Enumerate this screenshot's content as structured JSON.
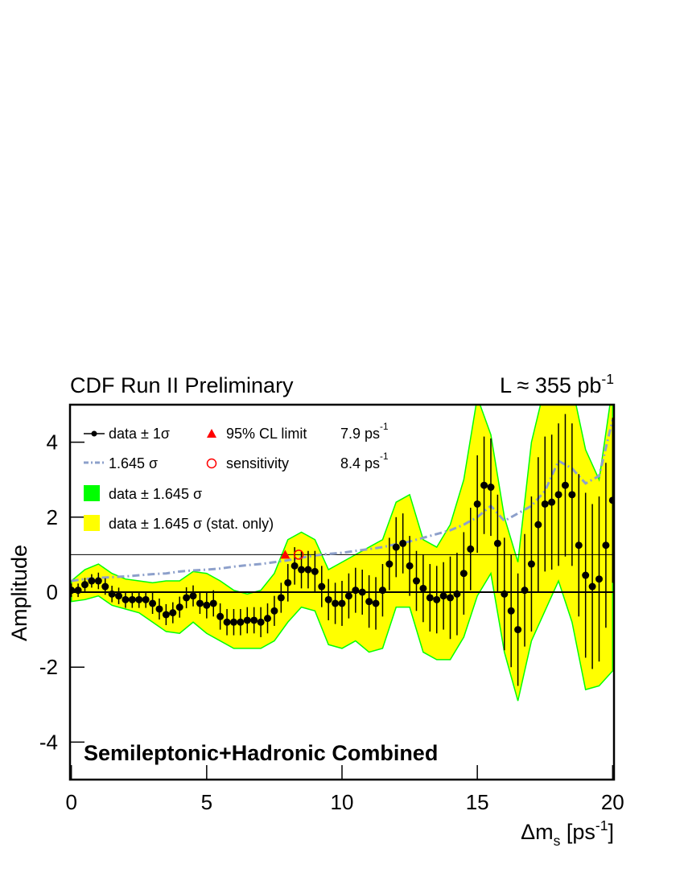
{
  "chart_data": {
    "type": "scatter",
    "title": "CDF Run II Preliminary",
    "luminosity": {
      "text": "L ≈ 355 pb",
      "exponent": "-1"
    },
    "x_label": [
      {
        "text": "Δm"
      },
      {
        "text": "s",
        "sub": true
      },
      {
        "text": " [ps"
      },
      {
        "text": "-1",
        "sup": true
      },
      {
        "text": "]"
      }
    ],
    "y_label": "Amplitude",
    "annotation": "Semileptonic+Hadronic Combined",
    "xlim": [
      -0.05,
      20.05
    ],
    "ylim": [
      -5,
      5
    ],
    "xticks": [
      0,
      5,
      10,
      15,
      20
    ],
    "yticks": [
      -4,
      -2,
      0,
      2,
      4
    ],
    "hlines": [
      0,
      1
    ],
    "series": [
      {
        "name": "data ± 1σ",
        "color": "#000000",
        "x": [
          0,
          0.25,
          0.5,
          0.75,
          1,
          1.25,
          1.5,
          1.75,
          2,
          2.25,
          2.5,
          2.75,
          3,
          3.25,
          3.5,
          3.75,
          4,
          4.25,
          4.5,
          4.75,
          5,
          5.25,
          5.5,
          5.75,
          6,
          6.25,
          6.5,
          6.75,
          7,
          7.25,
          7.5,
          7.75,
          8,
          8.25,
          8.5,
          8.75,
          9,
          9.25,
          9.5,
          9.75,
          10,
          10.25,
          10.5,
          10.75,
          11,
          11.25,
          11.5,
          11.75,
          12,
          12.25,
          12.5,
          12.75,
          13,
          13.25,
          13.5,
          13.75,
          14,
          14.25,
          14.5,
          14.75,
          15,
          15.25,
          15.5,
          15.75,
          16,
          16.25,
          16.5,
          16.75,
          17,
          17.25,
          17.5,
          17.75,
          18,
          18.25,
          18.5,
          18.75,
          19,
          19.25,
          19.5,
          19.75,
          20
        ],
        "values": [
          0.05,
          0.05,
          0.2,
          0.3,
          0.3,
          0.15,
          -0.05,
          -0.1,
          -0.2,
          -0.2,
          -0.2,
          -0.2,
          -0.3,
          -0.45,
          -0.6,
          -0.55,
          -0.4,
          -0.15,
          -0.1,
          -0.3,
          -0.35,
          -0.3,
          -0.65,
          -0.8,
          -0.8,
          -0.8,
          -0.75,
          -0.75,
          -0.8,
          -0.7,
          -0.5,
          -0.15,
          0.25,
          0.7,
          0.6,
          0.6,
          0.55,
          0.15,
          -0.2,
          -0.3,
          -0.3,
          -0.1,
          0.05,
          0,
          -0.25,
          -0.3,
          0.05,
          0.75,
          1.2,
          1.3,
          0.7,
          0.3,
          0.1,
          -0.15,
          -0.2,
          -0.1,
          -0.15,
          -0.05,
          0.5,
          1.15,
          2.35,
          2.85,
          2.8,
          1.3,
          -0.05,
          -0.5,
          -1.0,
          0.05,
          0.75,
          1.8,
          2.35,
          2.4,
          2.6,
          2.85,
          2.6,
          1.25,
          0.45,
          0.15,
          0.35,
          1.25,
          2.45
        ],
        "errors": [
          0.18,
          0.18,
          0.18,
          0.18,
          0.22,
          0.22,
          0.22,
          0.22,
          0.22,
          0.22,
          0.22,
          0.22,
          0.28,
          0.28,
          0.28,
          0.28,
          0.28,
          0.28,
          0.28,
          0.28,
          0.35,
          0.35,
          0.35,
          0.35,
          0.35,
          0.35,
          0.35,
          0.35,
          0.4,
          0.4,
          0.4,
          0.4,
          0.5,
          0.5,
          0.5,
          0.5,
          0.55,
          0.55,
          0.55,
          0.55,
          0.6,
          0.6,
          0.6,
          0.6,
          0.7,
          0.7,
          0.7,
          0.7,
          0.8,
          0.8,
          0.8,
          0.8,
          0.9,
          0.9,
          0.9,
          0.9,
          1.1,
          1.1,
          1.1,
          1.1,
          1.3,
          1.3,
          1.3,
          1.3,
          1.5,
          1.5,
          1.5,
          1.5,
          1.8,
          1.8,
          1.8,
          1.8,
          1.9,
          1.9,
          1.9,
          1.9,
          2.2,
          2.2,
          2.2,
          2.2,
          2.2
        ]
      },
      {
        "name": "1.645 σ",
        "color": "#8da0cb",
        "x": [
          0,
          0.5,
          1,
          1.5,
          2,
          2.5,
          3,
          3.5,
          4,
          4.5,
          5,
          5.5,
          6,
          6.5,
          7,
          7.5,
          8,
          8.5,
          9,
          9.5,
          10,
          10.5,
          11,
          11.5,
          12,
          12.5,
          13,
          13.5,
          14,
          14.5,
          15,
          15.5,
          16,
          16.5,
          17,
          17.5,
          18,
          18.5,
          19,
          19.5,
          20
        ],
        "values": [
          0.3,
          0.35,
          0.38,
          0.4,
          0.42,
          0.45,
          0.48,
          0.5,
          0.55,
          0.58,
          0.6,
          0.63,
          0.68,
          0.72,
          0.75,
          0.8,
          0.85,
          0.92,
          0.98,
          1.02,
          1.05,
          1.1,
          1.15,
          1.2,
          1.28,
          1.35,
          1.45,
          1.55,
          1.65,
          1.8,
          2.0,
          2.3,
          1.9,
          2.1,
          2.3,
          2.7,
          3.5,
          3.3,
          2.9,
          3.1,
          4.6
        ]
      },
      {
        "name": "data ± 1.645 σ",
        "color": "#00ff00",
        "x": [
          0,
          0.5,
          1,
          1.5,
          2,
          2.5,
          3,
          3.5,
          4,
          4.5,
          5,
          5.5,
          6,
          6.5,
          7,
          7.5,
          8,
          8.5,
          9,
          9.5,
          10,
          10.5,
          11,
          11.5,
          12,
          12.5,
          13,
          13.5,
          14,
          14.5,
          15,
          15.5,
          16,
          16.5,
          17,
          17.5,
          18,
          18.5,
          19,
          19.5,
          20
        ],
        "upper": [
          0.3,
          0.6,
          0.75,
          0.5,
          0.35,
          0.3,
          0.25,
          0.3,
          0.3,
          0.55,
          0.5,
          0.3,
          0.05,
          -0.05,
          0.05,
          0.5,
          1.4,
          1.6,
          1.4,
          0.6,
          0.8,
          1.0,
          1.2,
          1.4,
          2.4,
          2.6,
          1.4,
          1.2,
          1.8,
          3.0,
          5.2,
          4.2,
          2.0,
          0.8,
          4.0,
          5.5,
          6.0,
          5.5,
          3.8,
          3.0,
          5.5
        ],
        "lower": [
          -0.25,
          -0.2,
          -0.1,
          -0.35,
          -0.45,
          -0.55,
          -0.8,
          -1.05,
          -1.1,
          -0.8,
          -1.1,
          -1.3,
          -1.5,
          -1.5,
          -1.5,
          -1.3,
          -0.8,
          -0.4,
          -0.5,
          -1.4,
          -1.5,
          -1.3,
          -1.6,
          -1.5,
          -0.4,
          -0.4,
          -1.6,
          -1.8,
          -1.8,
          -1.2,
          -0.1,
          0.5,
          -1.6,
          -2.9,
          -1.3,
          -0.5,
          0.3,
          -0.8,
          -2.6,
          -2.5,
          -2.1
        ]
      },
      {
        "name": "data ± 1.645 σ (stat. only)",
        "color": "#ffff00"
      }
    ],
    "markers": [
      {
        "name": "95% CL limit",
        "x": 7.9,
        "y": 1,
        "color": "#ff0000",
        "unit": "ps",
        "exponent": "-1"
      },
      {
        "name": "sensitivity",
        "x": 8.4,
        "y": 1,
        "color": "#ff0000",
        "unit": "ps",
        "exponent": "-1"
      }
    ]
  }
}
